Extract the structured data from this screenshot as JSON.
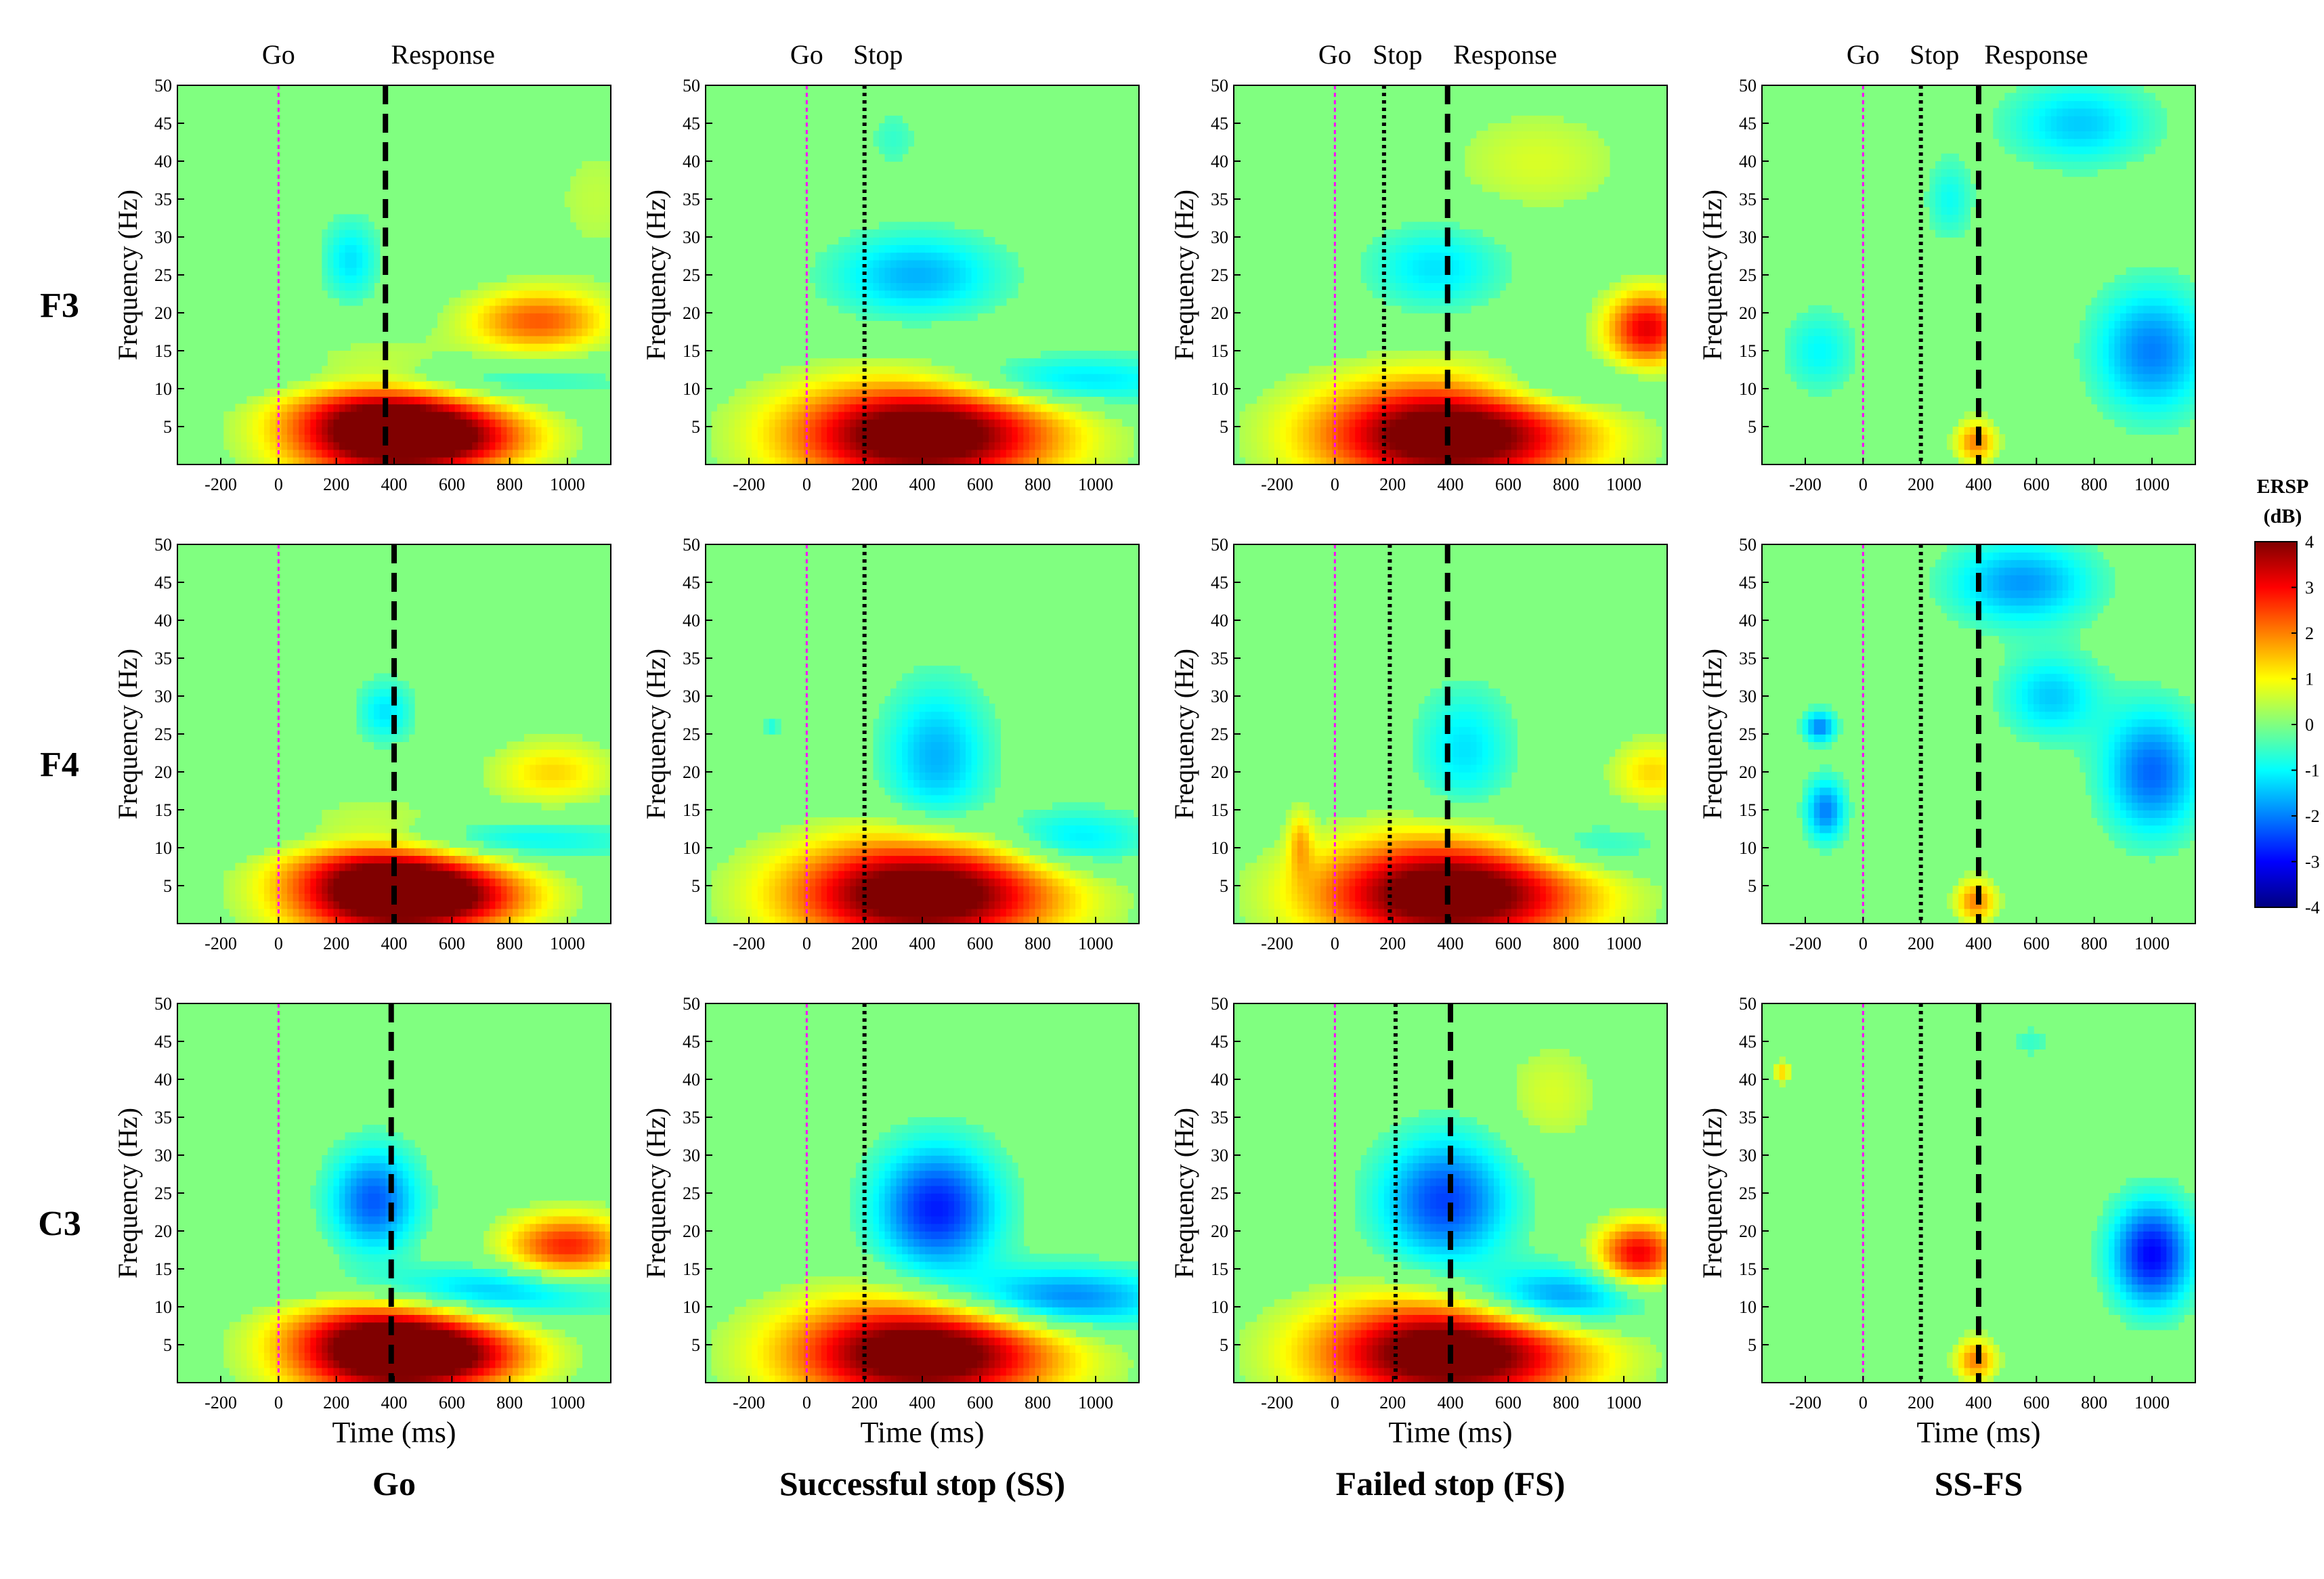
{
  "chart_data": {
    "type": "heatmap",
    "title": "",
    "xlabel": "Time (ms)",
    "ylabel": "Frequency (Hz)",
    "xlim": [
      -350,
      1150
    ],
    "ylim": [
      0,
      50
    ],
    "x_ticks": [
      -200,
      0,
      200,
      400,
      600,
      800,
      1000
    ],
    "y_ticks": [
      5,
      10,
      15,
      20,
      25,
      30,
      35,
      40,
      45,
      50
    ],
    "rows": [
      "F3",
      "F4",
      "C3"
    ],
    "columns": [
      "Go",
      "Successful stop (SS)",
      "Failed stop (FS)",
      "SS-FS"
    ],
    "colorbar": {
      "title_line1": "ERSP",
      "title_line2": "(dB)",
      "range": [
        -4,
        4
      ],
      "ticks": [
        4,
        3,
        2,
        1,
        0,
        -1,
        -2,
        -3,
        -4
      ],
      "colormap": "jet"
    },
    "colors": {
      "background": "#80ff80",
      "magenta_line": "#ff00ff",
      "event_line": "#000000"
    },
    "panels": [
      {
        "row": "F3",
        "column": "Go",
        "events": [
          {
            "label": "Go",
            "t": 0
          },
          {
            "label": "Response",
            "t": 370
          }
        ],
        "blobs": [
          {
            "t": 350,
            "f": 5,
            "wt": 240,
            "wf": 5,
            "v": 4.5
          },
          {
            "t": 600,
            "f": 3.5,
            "wt": 220,
            "wf": 3,
            "v": 2.5
          },
          {
            "t": 250,
            "f": 27,
            "wt": 70,
            "wf": 4,
            "v": -1.2
          },
          {
            "t": 500,
            "f": 11,
            "wt": 420,
            "wf": 2,
            "v": -1.3
          },
          {
            "t": 900,
            "f": 19,
            "wt": 170,
            "wf": 3,
            "v": 2.3
          },
          {
            "t": 1100,
            "f": 35,
            "wt": 120,
            "wf": 6,
            "v": 0.5
          }
        ]
      },
      {
        "row": "F3",
        "column": "Successful stop (SS)",
        "events": [
          {
            "label": "Go",
            "t": 0
          },
          {
            "label": "Stop",
            "t": 200
          }
        ],
        "blobs": [
          {
            "t": 400,
            "f": 4,
            "wt": 320,
            "wf": 5,
            "v": 5
          },
          {
            "t": 380,
            "f": 25,
            "wt": 210,
            "wf": 4,
            "v": -1.6
          },
          {
            "t": 850,
            "f": 11,
            "wt": 330,
            "wf": 2.5,
            "v": -1.6
          },
          {
            "t": 300,
            "f": 43,
            "wt": 60,
            "wf": 3,
            "v": -0.6
          }
        ]
      },
      {
        "row": "F3",
        "column": "Failed stop (FS)",
        "events": [
          {
            "label": "Go",
            "t": 0
          },
          {
            "label": "Stop",
            "t": 170
          },
          {
            "label": "Response",
            "t": 390
          }
        ],
        "blobs": [
          {
            "t": 400,
            "f": 4,
            "wt": 320,
            "wf": 5,
            "v": 5
          },
          {
            "t": 350,
            "f": 26,
            "wt": 170,
            "wf": 4,
            "v": -1.2
          },
          {
            "t": 750,
            "f": 10,
            "wt": 220,
            "wf": 2.5,
            "v": -1.2
          },
          {
            "t": 1080,
            "f": 18,
            "wt": 100,
            "wf": 3.5,
            "v": 3.2
          },
          {
            "t": 700,
            "f": 40,
            "wt": 220,
            "wf": 5,
            "v": 0.7
          }
        ]
      },
      {
        "row": "F3",
        "column": "SS-FS",
        "events": [
          {
            "label": "Go",
            "t": 0
          },
          {
            "label": "Stop",
            "t": 200
          },
          {
            "label": "Response",
            "t": 400
          }
        ],
        "blobs": [
          {
            "t": 390,
            "f": 3,
            "wt": 50,
            "wf": 2,
            "v": 2
          },
          {
            "t": -150,
            "f": 15,
            "wt": 90,
            "wf": 4,
            "v": -1
          },
          {
            "t": 1000,
            "f": 15,
            "wt": 140,
            "wf": 6,
            "v": -2
          },
          {
            "t": 750,
            "f": 45,
            "wt": 180,
            "wf": 4,
            "v": -1.4
          },
          {
            "t": 300,
            "f": 35,
            "wt": 60,
            "wf": 4,
            "v": -0.9
          }
        ]
      },
      {
        "row": "F4",
        "column": "Go",
        "events": [
          {
            "label": "Go",
            "t": 0
          },
          {
            "label": "Response",
            "t": 400
          }
        ],
        "blobs": [
          {
            "t": 350,
            "f": 5,
            "wt": 240,
            "wf": 5,
            "v": 4.5
          },
          {
            "t": 600,
            "f": 3.5,
            "wt": 220,
            "wf": 3,
            "v": 2.5
          },
          {
            "t": 370,
            "f": 28,
            "wt": 70,
            "wf": 3,
            "v": -1.2
          },
          {
            "t": 600,
            "f": 11,
            "wt": 450,
            "wf": 2,
            "v": -1.4
          },
          {
            "t": 950,
            "f": 20,
            "wt": 150,
            "wf": 3,
            "v": 1.3
          }
        ]
      },
      {
        "row": "F4",
        "column": "Successful stop (SS)",
        "events": [
          {
            "label": "Go",
            "t": 0
          },
          {
            "label": "Stop",
            "t": 200
          }
        ],
        "blobs": [
          {
            "t": 400,
            "f": 4,
            "wt": 320,
            "wf": 5,
            "v": 5
          },
          {
            "t": 450,
            "f": 22,
            "wt": 130,
            "wf": 7,
            "v": -1.6
          },
          {
            "t": 900,
            "f": 11,
            "wt": 200,
            "wf": 3,
            "v": -1.5
          },
          {
            "t": -120,
            "f": 26,
            "wt": 20,
            "wf": 1,
            "v": -0.8
          }
        ]
      },
      {
        "row": "F4",
        "column": "Failed stop (FS)",
        "events": [
          {
            "label": "Go",
            "t": 0
          },
          {
            "label": "Stop",
            "t": 190
          },
          {
            "label": "Response",
            "t": 390
          }
        ],
        "blobs": [
          {
            "t": 400,
            "f": 4,
            "wt": 320,
            "wf": 5,
            "v": 5
          },
          {
            "t": 450,
            "f": 23,
            "wt": 120,
            "wf": 6,
            "v": -1.2
          },
          {
            "t": 850,
            "f": 10,
            "wt": 200,
            "wf": 2.5,
            "v": -1.2
          },
          {
            "t": 1100,
            "f": 20,
            "wt": 100,
            "wf": 3,
            "v": 1.3
          },
          {
            "t": -120,
            "f": 11,
            "wt": 30,
            "wf": 3,
            "v": 1.2
          }
        ]
      },
      {
        "row": "F4",
        "column": "SS-FS",
        "events": [
          {
            "label": "Go",
            "t": 0
          },
          {
            "label": "Stop",
            "t": 200
          },
          {
            "label": "Response",
            "t": 400
          }
        ],
        "blobs": [
          {
            "t": 390,
            "f": 3,
            "wt": 50,
            "wf": 2,
            "v": 2
          },
          {
            "t": -150,
            "f": 26,
            "wt": 40,
            "wf": 1.5,
            "v": -2
          },
          {
            "t": -130,
            "f": 15,
            "wt": 50,
            "wf": 3,
            "v": -2
          },
          {
            "t": 1000,
            "f": 20,
            "wt": 120,
            "wf": 6,
            "v": -2.2
          },
          {
            "t": 550,
            "f": 45,
            "wt": 180,
            "wf": 4,
            "v": -1.8
          },
          {
            "t": 650,
            "f": 30,
            "wt": 120,
            "wf": 4,
            "v": -1.4
          }
        ]
      },
      {
        "row": "C3",
        "column": "Go",
        "events": [
          {
            "label": "Go",
            "t": 0
          },
          {
            "label": "Response",
            "t": 390
          }
        ],
        "blobs": [
          {
            "t": 350,
            "f": 5,
            "wt": 240,
            "wf": 5,
            "v": 4.5
          },
          {
            "t": 600,
            "f": 3.5,
            "wt": 220,
            "wf": 3,
            "v": 2.5
          },
          {
            "t": 330,
            "f": 24,
            "wt": 110,
            "wf": 5,
            "v": -2.3
          },
          {
            "t": 600,
            "f": 12,
            "wt": 380,
            "wf": 2.5,
            "v": -2
          },
          {
            "t": 1000,
            "f": 18,
            "wt": 150,
            "wf": 3,
            "v": 2.8
          }
        ]
      },
      {
        "row": "C3",
        "column": "Successful stop (SS)",
        "events": [
          {
            "label": "Go",
            "t": 0
          },
          {
            "label": "Stop",
            "t": 200
          }
        ],
        "blobs": [
          {
            "t": 400,
            "f": 4,
            "wt": 320,
            "wf": 5,
            "v": 5
          },
          {
            "t": 450,
            "f": 23,
            "wt": 150,
            "wf": 6,
            "v": -2.8
          },
          {
            "t": 850,
            "f": 11,
            "wt": 280,
            "wf": 3,
            "v": -2.4
          }
        ]
      },
      {
        "row": "C3",
        "column": "Failed stop (FS)",
        "events": [
          {
            "label": "Go",
            "t": 0
          },
          {
            "label": "Stop",
            "t": 210
          },
          {
            "label": "Response",
            "t": 400
          }
        ],
        "blobs": [
          {
            "t": 400,
            "f": 4,
            "wt": 320,
            "wf": 5,
            "v": 5
          },
          {
            "t": 380,
            "f": 24,
            "wt": 160,
            "wf": 6,
            "v": -2.5
          },
          {
            "t": 750,
            "f": 11,
            "wt": 220,
            "wf": 3,
            "v": -2.5
          },
          {
            "t": 1050,
            "f": 17,
            "wt": 100,
            "wf": 3,
            "v": 3.2
          },
          {
            "t": 750,
            "f": 38,
            "wt": 120,
            "wf": 5,
            "v": 0.7
          }
        ]
      },
      {
        "row": "C3",
        "column": "SS-FS",
        "events": [
          {
            "label": "Go",
            "t": 0
          },
          {
            "label": "Stop",
            "t": 200
          },
          {
            "label": "Response",
            "t": 400
          }
        ],
        "blobs": [
          {
            "t": 390,
            "f": 3,
            "wt": 50,
            "wf": 2,
            "v": 2
          },
          {
            "t": 1000,
            "f": 17,
            "wt": 100,
            "wf": 5,
            "v": -3
          },
          {
            "t": -280,
            "f": 41,
            "wt": 20,
            "wf": 1,
            "v": 1.4
          },
          {
            "t": 580,
            "f": 45,
            "wt": 50,
            "wf": 1.5,
            "v": -0.6
          }
        ]
      }
    ]
  }
}
